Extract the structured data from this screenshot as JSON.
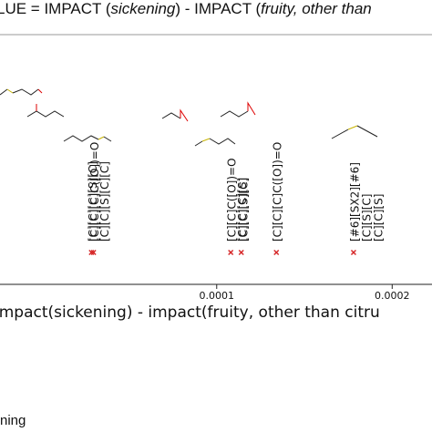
{
  "chart_data": {
    "type": "scatter",
    "title": [
      {
        "text": "LUE = IMPACT (",
        "italic": false
      },
      {
        "text": "sickening",
        "italic": true
      },
      {
        "text": ") - IMPACT (",
        "italic": false
      },
      {
        "text": "fruity, other than",
        "italic": true
      }
    ],
    "xlabel": "impact(sickening) - impact(fruity, other than citru",
    "x": [
      2.86e-05,
      2.98e-05,
      0.000108,
      0.000114,
      0.000134,
      0.000178
    ],
    "point_labels": [
      [
        "[C][C][C][S][C]",
        "[C][C][S][C][C]"
      ],
      [
        "[C][C][C]C([O])=O"
      ],
      [
        "[C][C]C([O])=O",
        "[C][C][S][C]"
      ],
      [
        "[C][C][C][S]"
      ],
      [
        "[C][C][C]C([O])=O"
      ],
      [
        "[#6][SX2][#6]",
        "[C][S][C]",
        "[C][C][S]"
      ]
    ],
    "color": "#d62728",
    "xlim": [
      -2.35e-05,
      0.0002227
    ],
    "xticks": [
      0.0001,
      0.0002
    ],
    "legend_fragment": "ning"
  }
}
